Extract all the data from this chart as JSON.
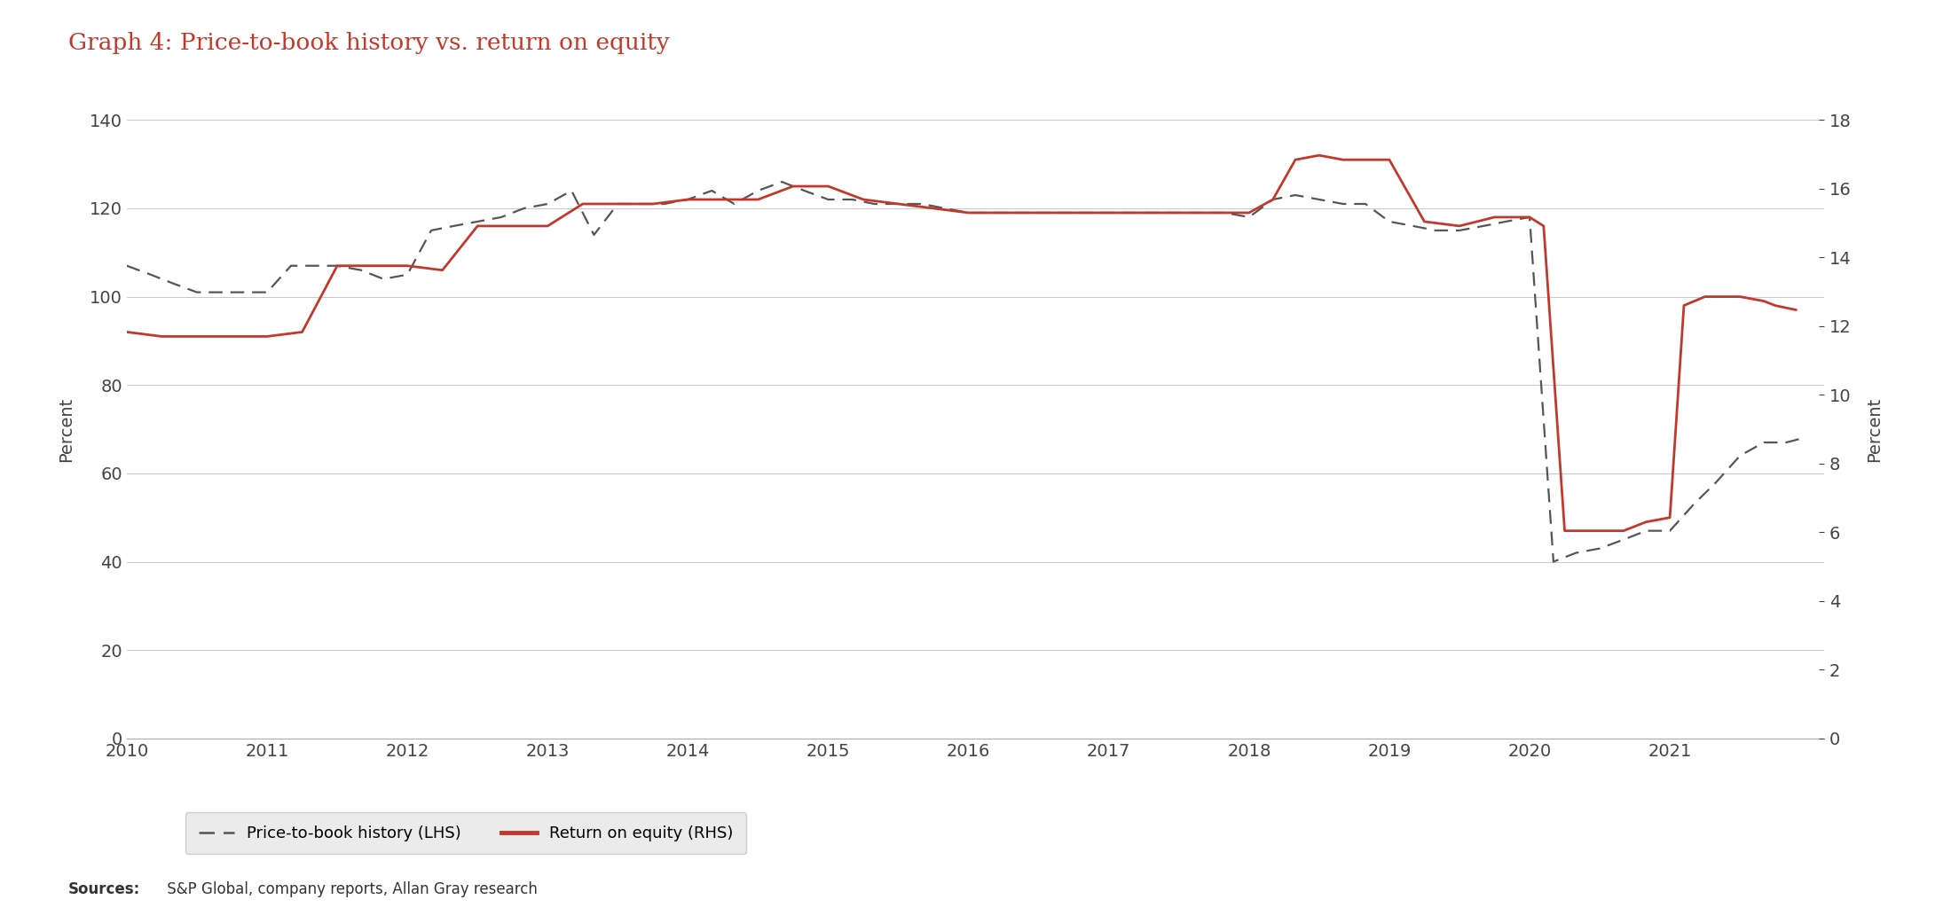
{
  "title": "Graph 4: Price-to-book history vs. return on equity",
  "title_color": "#c0392b",
  "ylabel_left": "Percent",
  "ylabel_right": "Percent",
  "background_color": "#ffffff",
  "grid_color": "#c8c8c8",
  "sources_bold": "Sources:",
  "sources_rest": " S&P Global, company reports, Allan Gray research",
  "ptb_x": [
    2010.0,
    2010.17,
    2010.33,
    2010.5,
    2010.67,
    2010.83,
    2011.0,
    2011.17,
    2011.33,
    2011.5,
    2011.67,
    2011.83,
    2012.0,
    2012.17,
    2012.33,
    2012.5,
    2012.67,
    2012.83,
    2013.0,
    2013.17,
    2013.33,
    2013.5,
    2013.67,
    2013.83,
    2014.0,
    2014.17,
    2014.33,
    2014.5,
    2014.67,
    2014.83,
    2015.0,
    2015.17,
    2015.33,
    2015.5,
    2015.67,
    2015.83,
    2016.0,
    2016.17,
    2016.33,
    2016.5,
    2016.67,
    2016.83,
    2017.0,
    2017.17,
    2017.33,
    2017.5,
    2017.67,
    2017.83,
    2018.0,
    2018.17,
    2018.33,
    2018.5,
    2018.67,
    2018.83,
    2019.0,
    2019.17,
    2019.33,
    2019.5,
    2019.67,
    2019.83,
    2020.0,
    2020.17,
    2020.33,
    2020.5,
    2020.67,
    2020.83,
    2021.0,
    2021.17,
    2021.33,
    2021.5,
    2021.67,
    2021.83,
    2021.95
  ],
  "ptb_y": [
    107,
    105,
    103,
    101,
    101,
    101,
    101,
    107,
    107,
    107,
    106,
    104,
    105,
    115,
    116,
    117,
    118,
    120,
    121,
    124,
    114,
    121,
    121,
    121,
    122,
    124,
    121,
    124,
    126,
    124,
    122,
    122,
    121,
    121,
    121,
    120,
    119,
    119,
    119,
    119,
    119,
    119,
    119,
    119,
    119,
    119,
    119,
    119,
    118,
    122,
    123,
    122,
    121,
    121,
    117,
    116,
    115,
    115,
    116,
    117,
    118,
    40,
    42,
    43,
    45,
    47,
    47,
    53,
    58,
    64,
    67,
    67,
    68
  ],
  "roe_x": [
    2010.0,
    2010.25,
    2010.5,
    2010.75,
    2011.0,
    2011.25,
    2011.5,
    2011.75,
    2012.0,
    2012.25,
    2012.5,
    2012.75,
    2013.0,
    2013.25,
    2013.5,
    2013.75,
    2014.0,
    2014.25,
    2014.5,
    2014.75,
    2015.0,
    2015.25,
    2015.5,
    2015.75,
    2016.0,
    2016.25,
    2016.5,
    2016.75,
    2017.0,
    2017.25,
    2017.5,
    2017.75,
    2018.0,
    2018.17,
    2018.33,
    2018.5,
    2018.67,
    2018.83,
    2019.0,
    2019.25,
    2019.5,
    2019.75,
    2019.9,
    2020.0,
    2020.1,
    2020.25,
    2020.5,
    2020.67,
    2020.75,
    2020.83,
    2021.0,
    2021.1,
    2021.25,
    2021.5,
    2021.67,
    2021.75,
    2021.9
  ],
  "roe_y": [
    92,
    91,
    91,
    91,
    91,
    92,
    107,
    107,
    107,
    106,
    116,
    116,
    116,
    121,
    121,
    121,
    122,
    122,
    122,
    125,
    125,
    122,
    121,
    120,
    119,
    119,
    119,
    119,
    119,
    119,
    119,
    119,
    119,
    122,
    131,
    132,
    131,
    131,
    131,
    117,
    116,
    118,
    118,
    118,
    116,
    47,
    47,
    47,
    48,
    49,
    50,
    98,
    100,
    100,
    99,
    98,
    97
  ],
  "ptb_color": "#555555",
  "roe_color": "#c0392b",
  "ptb_linewidth": 1.6,
  "roe_linewidth": 2.0,
  "xlim": [
    2010,
    2022.1
  ],
  "ylim_left": [
    0,
    140
  ],
  "ylim_right": [
    0,
    18
  ],
  "yticks_left": [
    0,
    20,
    40,
    60,
    80,
    100,
    120,
    140
  ],
  "yticks_right": [
    0,
    2,
    4,
    6,
    8,
    10,
    12,
    14,
    16,
    18
  ],
  "xticks": [
    2010,
    2011,
    2012,
    2013,
    2014,
    2015,
    2016,
    2017,
    2018,
    2019,
    2020,
    2021
  ],
  "legend_ptb_label": "Price-to-book history (LHS)",
  "legend_roe_label": "Return on equity (RHS)"
}
